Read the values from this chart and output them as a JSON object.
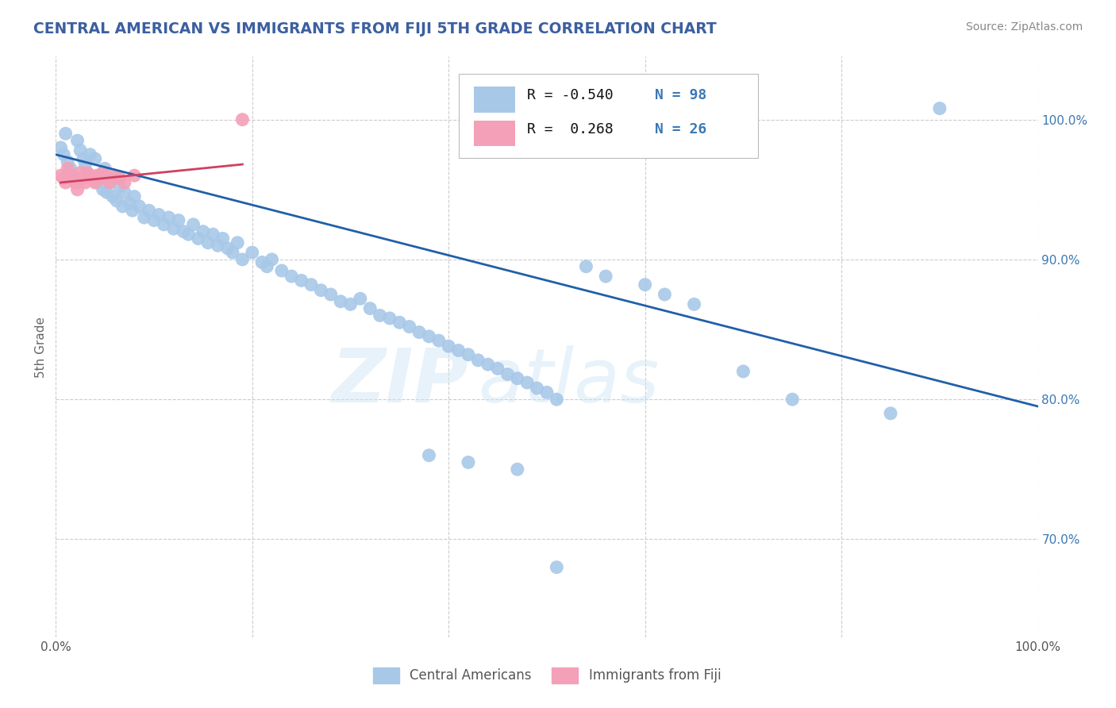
{
  "title": "CENTRAL AMERICAN VS IMMIGRANTS FROM FIJI 5TH GRADE CORRELATION CHART",
  "source_text": "Source: ZipAtlas.com",
  "ylabel": "5th Grade",
  "xlim": [
    0.0,
    1.0
  ],
  "ylim": [
    0.63,
    1.045
  ],
  "x_ticks": [
    0.0,
    0.2,
    0.4,
    0.6,
    0.8,
    1.0
  ],
  "y_ticks_right": [
    0.7,
    0.8,
    0.9,
    1.0
  ],
  "y_tick_labels_right": [
    "70.0%",
    "80.0%",
    "90.0%",
    "100.0%"
  ],
  "blue_color": "#a8c8e8",
  "pink_color": "#f4a0b8",
  "blue_line_color": "#2060a8",
  "pink_line_color": "#d04060",
  "title_color": "#3c5fa0",
  "watermark_text": "ZIPatlas",
  "background_color": "#ffffff",
  "grid_color": "#cccccc",
  "blue_scatter_x": [
    0.005,
    0.008,
    0.01,
    0.012,
    0.015,
    0.018,
    0.02,
    0.022,
    0.025,
    0.028,
    0.03,
    0.032,
    0.035,
    0.038,
    0.04,
    0.042,
    0.045,
    0.048,
    0.05,
    0.052,
    0.055,
    0.058,
    0.06,
    0.062,
    0.065,
    0.068,
    0.07,
    0.075,
    0.078,
    0.08,
    0.085,
    0.09,
    0.095,
    0.1,
    0.105,
    0.11,
    0.115,
    0.12,
    0.125,
    0.13,
    0.135,
    0.14,
    0.145,
    0.15,
    0.155,
    0.16,
    0.165,
    0.17,
    0.175,
    0.18,
    0.185,
    0.19,
    0.2,
    0.21,
    0.215,
    0.22,
    0.23,
    0.24,
    0.25,
    0.26,
    0.27,
    0.28,
    0.29,
    0.3,
    0.31,
    0.32,
    0.33,
    0.34,
    0.35,
    0.36,
    0.37,
    0.38,
    0.39,
    0.4,
    0.41,
    0.42,
    0.43,
    0.44,
    0.45,
    0.46,
    0.47,
    0.48,
    0.49,
    0.5,
    0.51,
    0.54,
    0.56,
    0.6,
    0.62,
    0.65,
    0.7,
    0.75,
    0.85,
    0.9,
    0.38,
    0.42,
    0.47,
    0.51
  ],
  "blue_scatter_y": [
    0.98,
    0.975,
    0.99,
    0.97,
    0.965,
    0.96,
    0.955,
    0.985,
    0.978,
    0.972,
    0.968,
    0.962,
    0.975,
    0.958,
    0.972,
    0.955,
    0.96,
    0.95,
    0.965,
    0.948,
    0.955,
    0.945,
    0.958,
    0.942,
    0.952,
    0.938,
    0.948,
    0.94,
    0.935,
    0.945,
    0.938,
    0.93,
    0.935,
    0.928,
    0.932,
    0.925,
    0.93,
    0.922,
    0.928,
    0.92,
    0.918,
    0.925,
    0.915,
    0.92,
    0.912,
    0.918,
    0.91,
    0.915,
    0.908,
    0.905,
    0.912,
    0.9,
    0.905,
    0.898,
    0.895,
    0.9,
    0.892,
    0.888,
    0.885,
    0.882,
    0.878,
    0.875,
    0.87,
    0.868,
    0.872,
    0.865,
    0.86,
    0.858,
    0.855,
    0.852,
    0.848,
    0.845,
    0.842,
    0.838,
    0.835,
    0.832,
    0.828,
    0.825,
    0.822,
    0.818,
    0.815,
    0.812,
    0.808,
    0.805,
    0.8,
    0.895,
    0.888,
    0.882,
    0.875,
    0.868,
    0.82,
    0.8,
    0.79,
    1.008,
    0.76,
    0.755,
    0.75,
    0.68
  ],
  "pink_scatter_x": [
    0.005,
    0.008,
    0.01,
    0.012,
    0.015,
    0.018,
    0.02,
    0.022,
    0.025,
    0.028,
    0.03,
    0.032,
    0.035,
    0.038,
    0.04,
    0.042,
    0.045,
    0.048,
    0.05,
    0.052,
    0.055,
    0.06,
    0.065,
    0.07,
    0.08,
    0.19
  ],
  "pink_scatter_y": [
    0.96,
    0.958,
    0.955,
    0.965,
    0.96,
    0.958,
    0.955,
    0.95,
    0.962,
    0.958,
    0.955,
    0.962,
    0.96,
    0.958,
    0.955,
    0.96,
    0.958,
    0.962,
    0.96,
    0.958,
    0.955,
    0.96,
    0.958,
    0.955,
    0.96,
    1.0
  ],
  "blue_trendline_x": [
    0.0,
    1.0
  ],
  "blue_trendline_y": [
    0.975,
    0.795
  ],
  "pink_trendline_x": [
    0.005,
    0.19
  ],
  "pink_trendline_y": [
    0.955,
    0.968
  ]
}
